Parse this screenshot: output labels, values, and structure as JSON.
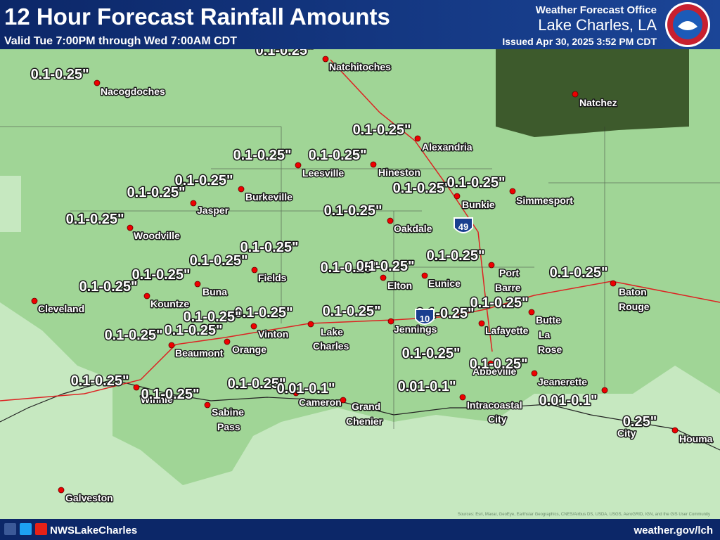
{
  "header": {
    "title": "12 Hour Forecast Rainfall Amounts",
    "subtitle": "Valid Tue 7:00PM through Wed 7:00AM CDT",
    "office": "Weather Forecast Office",
    "location": "Lake Charles, LA",
    "issued": "Issued Apr 30, 2025 3:52 PM CDT"
  },
  "cities": [
    [
      "Natchitoches"
    ],
    [
      "Nacogdoches"
    ],
    [
      "Natchez"
    ],
    [
      "Alexandria"
    ],
    [
      "Leesville"
    ],
    [
      "Hineston"
    ],
    [
      "Burkeville"
    ],
    [
      "Jasper"
    ],
    [
      "Bunkie"
    ],
    [
      "Simmesport"
    ],
    [
      "Oakdale"
    ],
    [
      "Woodville"
    ],
    [
      "Fields"
    ],
    [
      "Port",
      "Barre"
    ],
    [
      "Eunice"
    ],
    [
      "Elton"
    ],
    [
      "Baton",
      "Rouge"
    ],
    [
      "Buna"
    ],
    [
      "Kountze"
    ],
    [
      "Cleveland"
    ],
    [
      "Butte",
      "La",
      "Rose"
    ],
    [
      "Jennings"
    ],
    [
      "Lafayette"
    ],
    [
      "Vinton"
    ],
    [
      "Lake",
      "Charles"
    ],
    [
      "Beaumont"
    ],
    [
      "Orange"
    ],
    [
      "Abbeville"
    ],
    [
      "Jeanerette"
    ],
    [
      "Winnie"
    ],
    [
      "Cameron"
    ],
    [
      "Grand",
      "Chenier"
    ],
    [
      "Sabine",
      "Pass"
    ],
    [
      "Intracoastal",
      "City"
    ],
    [
      "City"
    ],
    [
      "Houma"
    ],
    [
      "Galveston"
    ]
  ],
  "amounts": [
    "0.1-0.25\"",
    "0.1-0.25\"",
    "0.1-0.25\"",
    "0.1-0.25\"",
    "0.1-0.25\"",
    "0.1-0.25\"",
    "0.1-0.25\"",
    "0.1-0.25\"",
    "0.1-0.25\"",
    "0.1-0.25\"",
    "0.1-0.25\"",
    "0.1-0.25\"",
    "0.1-0.25\"",
    "0.1-0.25\"",
    "0.1-0.25\"",
    "0.1-0.25\"",
    "0.1-0.25\"",
    "0.1-0.25\"",
    "0.1-0.25\"",
    "0.1-0.25\"",
    "0.1-0.25\"",
    "0.1-0.25\"",
    "0.1-0.25\"",
    "0.1-0.25\"",
    "0.1-0.25\"",
    "0.1-0.25\"",
    "0.1-0.25\"",
    "0.1-0.25\"",
    "0.1-0.25\"",
    "0.1-0.25\"",
    "0.1-0.25\"",
    "0.01-0.1\"",
    "0.01-0.1\"",
    "0.01-0.1\"",
    "0.25\""
  ],
  "shields": [
    "49",
    "10"
  ],
  "footer": {
    "social": "NWSLakeCharles",
    "website": "weather.gov/lch",
    "attribution": "Sources: Esri, Maxar, GeoEye, Earthstar Geographics, CNES/Airbus DS, USDA, USGS, AeroGRID, IGN, and the GIS User Community"
  }
}
